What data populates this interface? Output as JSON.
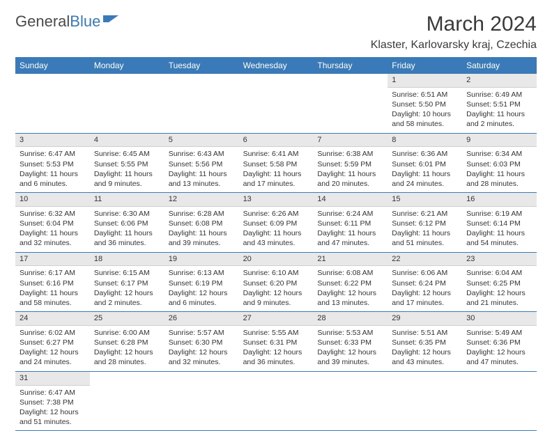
{
  "logo": {
    "text1": "General",
    "text2": "Blue"
  },
  "title": "March 2024",
  "location": "Klaster, Karlovarsky kraj, Czechia",
  "colors": {
    "header_bg": "#3a7ab8",
    "header_fg": "#ffffff",
    "daynum_bg": "#e8e8e8",
    "border": "#3a7ab8"
  },
  "day_headers": [
    "Sunday",
    "Monday",
    "Tuesday",
    "Wednesday",
    "Thursday",
    "Friday",
    "Saturday"
  ],
  "weeks": [
    [
      null,
      null,
      null,
      null,
      null,
      {
        "n": "1",
        "sr": "Sunrise: 6:51 AM",
        "ss": "Sunset: 5:50 PM",
        "dl": "Daylight: 10 hours and 58 minutes."
      },
      {
        "n": "2",
        "sr": "Sunrise: 6:49 AM",
        "ss": "Sunset: 5:51 PM",
        "dl": "Daylight: 11 hours and 2 minutes."
      }
    ],
    [
      {
        "n": "3",
        "sr": "Sunrise: 6:47 AM",
        "ss": "Sunset: 5:53 PM",
        "dl": "Daylight: 11 hours and 6 minutes."
      },
      {
        "n": "4",
        "sr": "Sunrise: 6:45 AM",
        "ss": "Sunset: 5:55 PM",
        "dl": "Daylight: 11 hours and 9 minutes."
      },
      {
        "n": "5",
        "sr": "Sunrise: 6:43 AM",
        "ss": "Sunset: 5:56 PM",
        "dl": "Daylight: 11 hours and 13 minutes."
      },
      {
        "n": "6",
        "sr": "Sunrise: 6:41 AM",
        "ss": "Sunset: 5:58 PM",
        "dl": "Daylight: 11 hours and 17 minutes."
      },
      {
        "n": "7",
        "sr": "Sunrise: 6:38 AM",
        "ss": "Sunset: 5:59 PM",
        "dl": "Daylight: 11 hours and 20 minutes."
      },
      {
        "n": "8",
        "sr": "Sunrise: 6:36 AM",
        "ss": "Sunset: 6:01 PM",
        "dl": "Daylight: 11 hours and 24 minutes."
      },
      {
        "n": "9",
        "sr": "Sunrise: 6:34 AM",
        "ss": "Sunset: 6:03 PM",
        "dl": "Daylight: 11 hours and 28 minutes."
      }
    ],
    [
      {
        "n": "10",
        "sr": "Sunrise: 6:32 AM",
        "ss": "Sunset: 6:04 PM",
        "dl": "Daylight: 11 hours and 32 minutes."
      },
      {
        "n": "11",
        "sr": "Sunrise: 6:30 AM",
        "ss": "Sunset: 6:06 PM",
        "dl": "Daylight: 11 hours and 36 minutes."
      },
      {
        "n": "12",
        "sr": "Sunrise: 6:28 AM",
        "ss": "Sunset: 6:08 PM",
        "dl": "Daylight: 11 hours and 39 minutes."
      },
      {
        "n": "13",
        "sr": "Sunrise: 6:26 AM",
        "ss": "Sunset: 6:09 PM",
        "dl": "Daylight: 11 hours and 43 minutes."
      },
      {
        "n": "14",
        "sr": "Sunrise: 6:24 AM",
        "ss": "Sunset: 6:11 PM",
        "dl": "Daylight: 11 hours and 47 minutes."
      },
      {
        "n": "15",
        "sr": "Sunrise: 6:21 AM",
        "ss": "Sunset: 6:12 PM",
        "dl": "Daylight: 11 hours and 51 minutes."
      },
      {
        "n": "16",
        "sr": "Sunrise: 6:19 AM",
        "ss": "Sunset: 6:14 PM",
        "dl": "Daylight: 11 hours and 54 minutes."
      }
    ],
    [
      {
        "n": "17",
        "sr": "Sunrise: 6:17 AM",
        "ss": "Sunset: 6:16 PM",
        "dl": "Daylight: 11 hours and 58 minutes."
      },
      {
        "n": "18",
        "sr": "Sunrise: 6:15 AM",
        "ss": "Sunset: 6:17 PM",
        "dl": "Daylight: 12 hours and 2 minutes."
      },
      {
        "n": "19",
        "sr": "Sunrise: 6:13 AM",
        "ss": "Sunset: 6:19 PM",
        "dl": "Daylight: 12 hours and 6 minutes."
      },
      {
        "n": "20",
        "sr": "Sunrise: 6:10 AM",
        "ss": "Sunset: 6:20 PM",
        "dl": "Daylight: 12 hours and 9 minutes."
      },
      {
        "n": "21",
        "sr": "Sunrise: 6:08 AM",
        "ss": "Sunset: 6:22 PM",
        "dl": "Daylight: 12 hours and 13 minutes."
      },
      {
        "n": "22",
        "sr": "Sunrise: 6:06 AM",
        "ss": "Sunset: 6:24 PM",
        "dl": "Daylight: 12 hours and 17 minutes."
      },
      {
        "n": "23",
        "sr": "Sunrise: 6:04 AM",
        "ss": "Sunset: 6:25 PM",
        "dl": "Daylight: 12 hours and 21 minutes."
      }
    ],
    [
      {
        "n": "24",
        "sr": "Sunrise: 6:02 AM",
        "ss": "Sunset: 6:27 PM",
        "dl": "Daylight: 12 hours and 24 minutes."
      },
      {
        "n": "25",
        "sr": "Sunrise: 6:00 AM",
        "ss": "Sunset: 6:28 PM",
        "dl": "Daylight: 12 hours and 28 minutes."
      },
      {
        "n": "26",
        "sr": "Sunrise: 5:57 AM",
        "ss": "Sunset: 6:30 PM",
        "dl": "Daylight: 12 hours and 32 minutes."
      },
      {
        "n": "27",
        "sr": "Sunrise: 5:55 AM",
        "ss": "Sunset: 6:31 PM",
        "dl": "Daylight: 12 hours and 36 minutes."
      },
      {
        "n": "28",
        "sr": "Sunrise: 5:53 AM",
        "ss": "Sunset: 6:33 PM",
        "dl": "Daylight: 12 hours and 39 minutes."
      },
      {
        "n": "29",
        "sr": "Sunrise: 5:51 AM",
        "ss": "Sunset: 6:35 PM",
        "dl": "Daylight: 12 hours and 43 minutes."
      },
      {
        "n": "30",
        "sr": "Sunrise: 5:49 AM",
        "ss": "Sunset: 6:36 PM",
        "dl": "Daylight: 12 hours and 47 minutes."
      }
    ],
    [
      {
        "n": "31",
        "sr": "Sunrise: 6:47 AM",
        "ss": "Sunset: 7:38 PM",
        "dl": "Daylight: 12 hours and 51 minutes."
      },
      null,
      null,
      null,
      null,
      null,
      null
    ]
  ]
}
